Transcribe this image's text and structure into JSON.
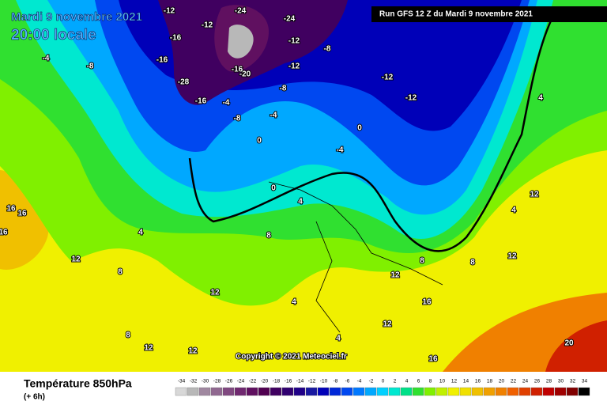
{
  "header": {
    "date": "Mardi 9 novembre 2021",
    "time": "20:00 locale",
    "run": "Run GFS 12 Z du Mardi 9 novembre 2021"
  },
  "copyright": "Copyright © 2021 Meteociel.fr",
  "footer": {
    "title": "Température 850hPa",
    "lead": "(+ 6h)"
  },
  "legend": {
    "ticks": [
      -34,
      -32,
      -30,
      -28,
      -26,
      -24,
      -22,
      -20,
      -18,
      -16,
      -14,
      -12,
      -10,
      -8,
      -6,
      -4,
      -2,
      0,
      2,
      4,
      6,
      8,
      10,
      12,
      14,
      16,
      18,
      20,
      22,
      24,
      26,
      28,
      30,
      32,
      34
    ],
    "colors": [
      "#d8d8d8",
      "#b8b8b8",
      "#a088a0",
      "#906890",
      "#804880",
      "#702870",
      "#601060",
      "#500050",
      "#400060",
      "#300070",
      "#200088",
      "#1818a0",
      "#0000b8",
      "#0028d8",
      "#0048f0",
      "#0078ff",
      "#00a8ff",
      "#00d0ff",
      "#00e8d0",
      "#00e088",
      "#30e030",
      "#80f000",
      "#c0f000",
      "#f0f000",
      "#f0e000",
      "#f0c000",
      "#f0a000",
      "#f08000",
      "#f06000",
      "#e04000",
      "#d02000",
      "#c00000",
      "#a00000",
      "#800000",
      "#000000"
    ]
  },
  "map_labels": [
    -12,
    -24,
    -24,
    -12,
    -16,
    -12,
    -4,
    -8,
    -16,
    -28,
    -20,
    -16,
    -16,
    -12,
    -8,
    -12,
    -12,
    -8,
    -4,
    -8,
    -4,
    0,
    0,
    -4,
    0,
    4,
    4,
    16,
    16,
    16,
    12,
    8,
    4,
    8,
    12,
    12,
    8,
    12,
    4,
    8,
    12,
    12,
    12,
    16,
    16,
    20,
    12,
    4,
    8,
    4
  ]
}
